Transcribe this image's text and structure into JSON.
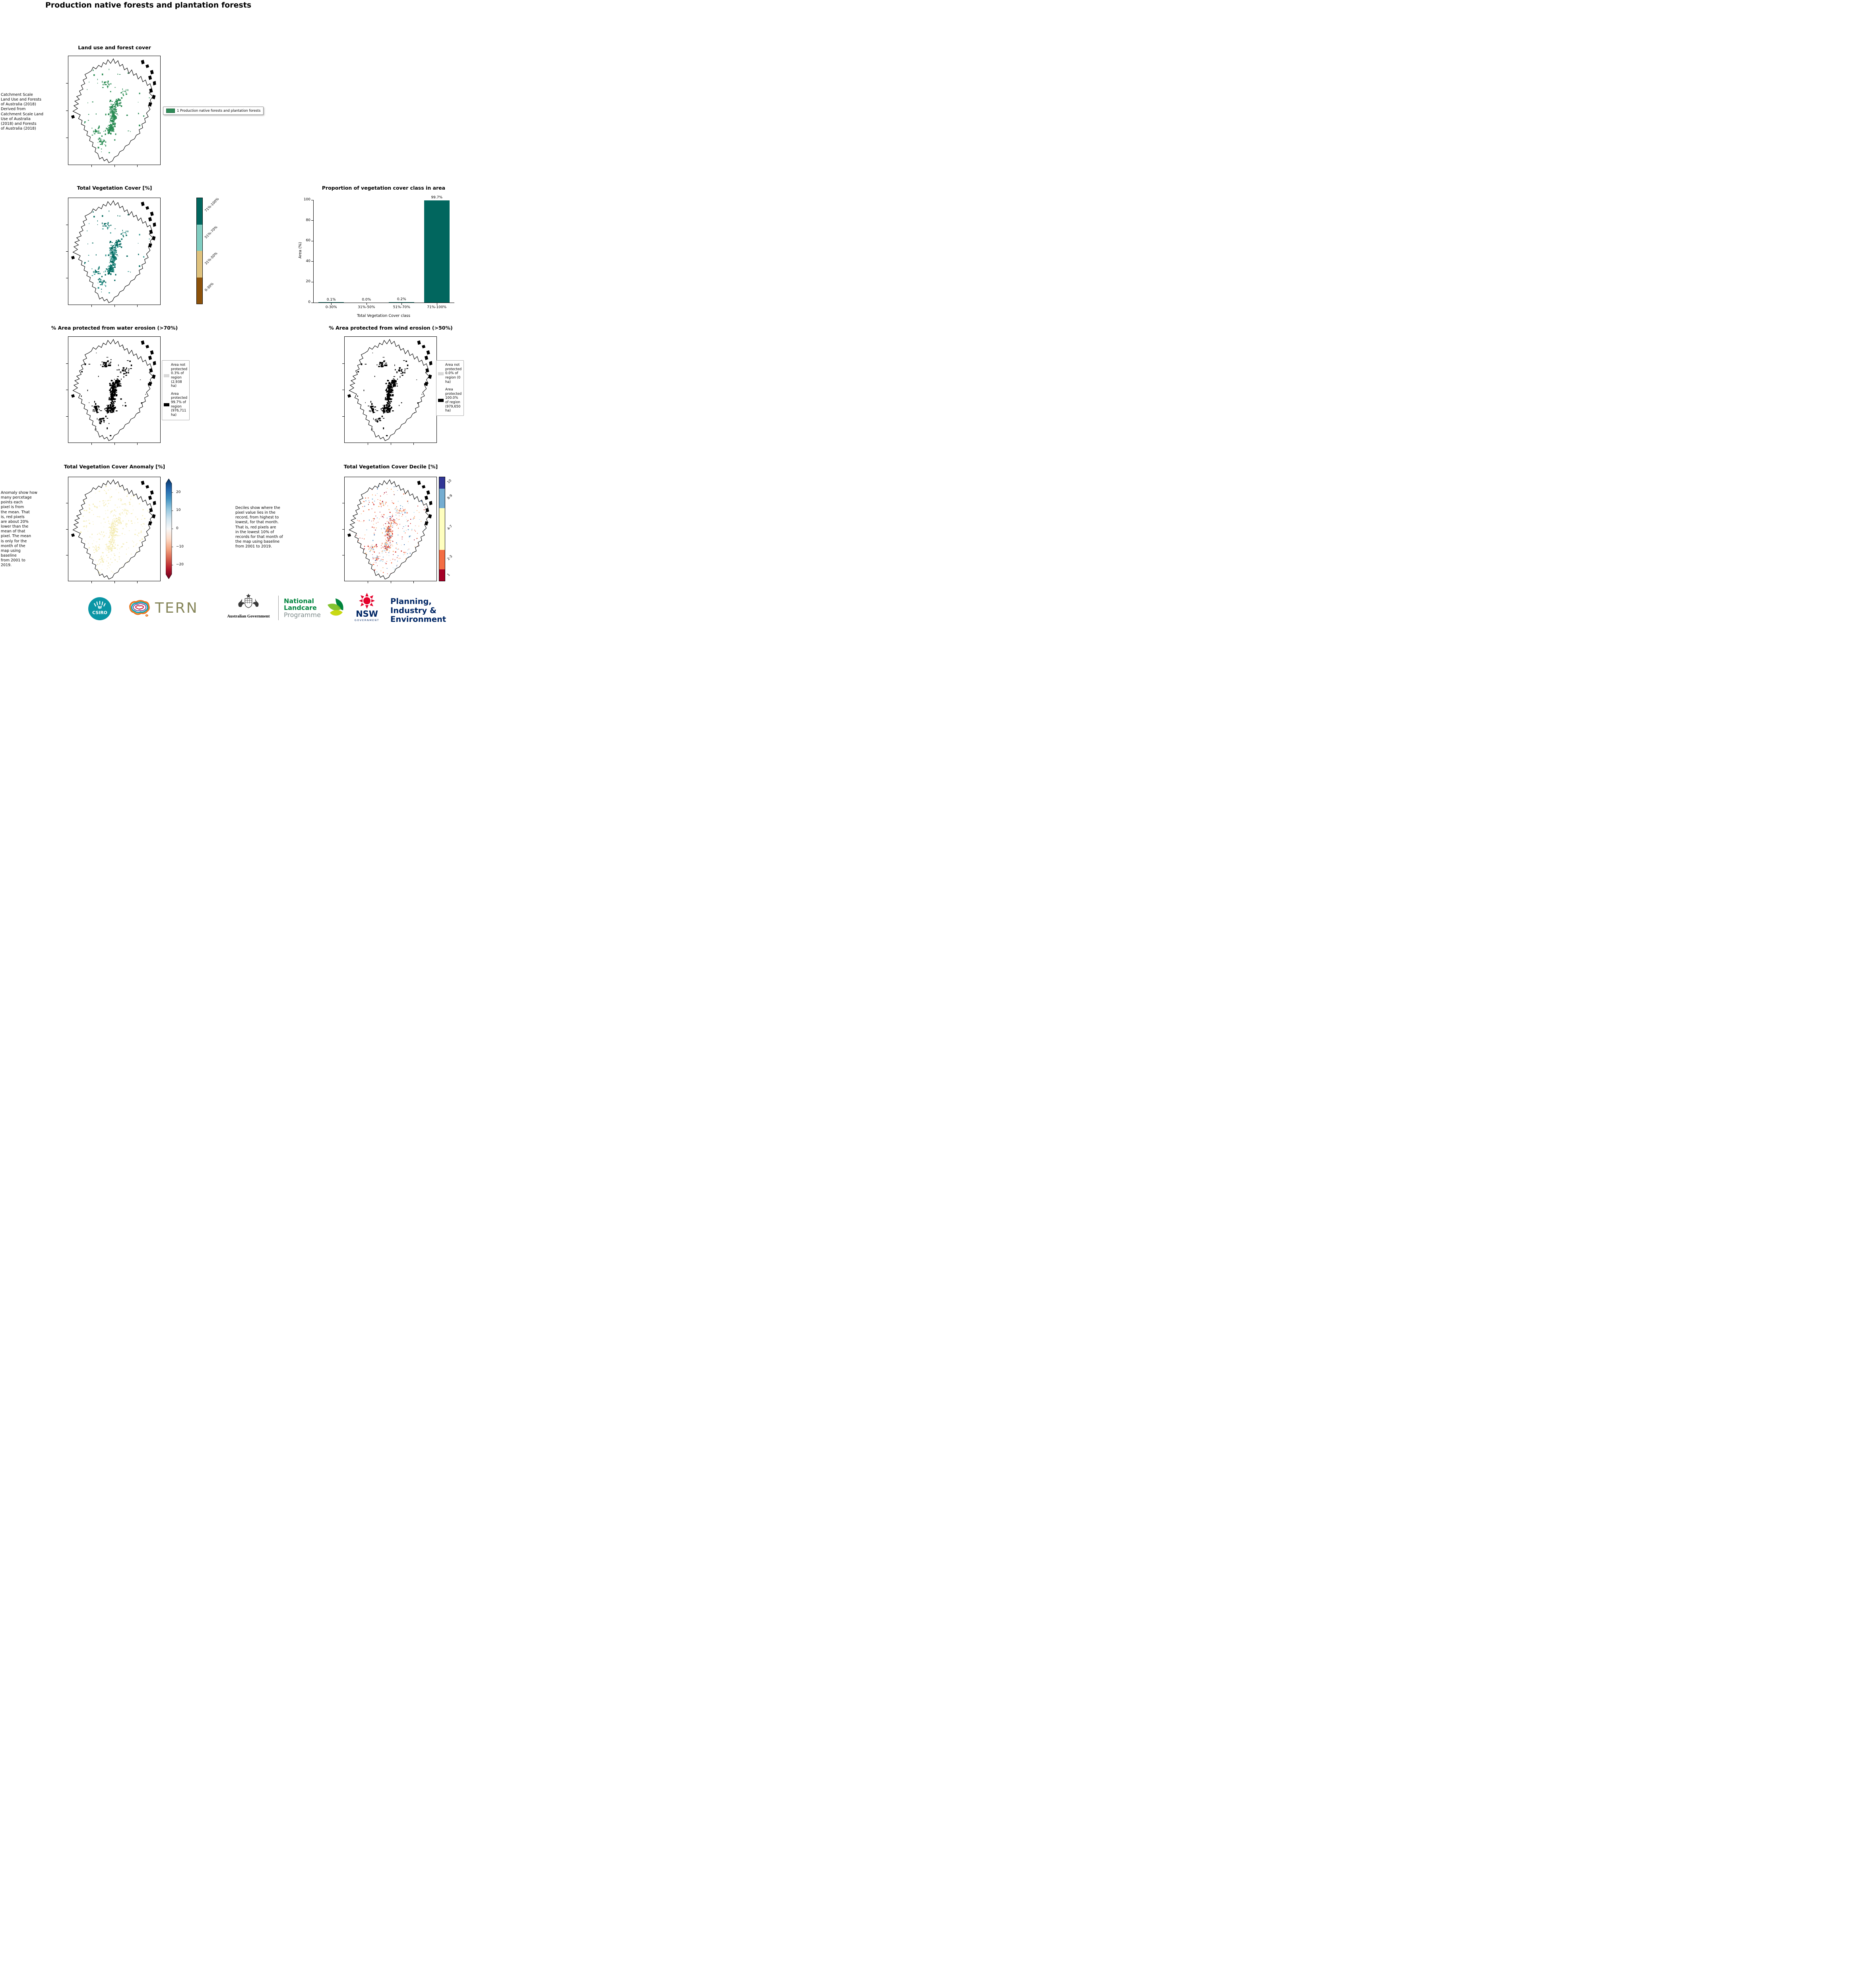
{
  "page": {
    "title": "Production native forests and plantation forests"
  },
  "land_use": {
    "title": "Land use and forest cover",
    "side_note": " Catchment Scale\nLand Use and Forests\nof Australia (2018)\nDerived from\nCatchment Scale Land\nUse of Australia\n(2018) and Forests\nof Australia (2018)",
    "legend_label": "1 Production native forests and plantation forests",
    "legend_color": "#2e8b57",
    "patch_colors": [
      "#2e8b57",
      "#278a4f",
      "#35935c"
    ]
  },
  "tvc": {
    "title": "Total Vegetation Cover [%]",
    "patch_colors": [
      "#01665e",
      "#0a6e63",
      "#35978f"
    ],
    "colorbar": {
      "classes": [
        {
          "label": "71%-100%",
          "color": "#01665e"
        },
        {
          "label": "51%-70%",
          "color": "#80cdc1"
        },
        {
          "label": "31%-50%",
          "color": "#dfc27d"
        },
        {
          "label": "0-30%",
          "color": "#8c510a"
        }
      ]
    }
  },
  "proportion": {
    "title": "Proportion of vegetation cover class in area",
    "chart_data": {
      "type": "bar",
      "categories": [
        "0-30%",
        "31%-50%",
        "51%-70%",
        "71%-100%"
      ],
      "values": [
        0.1,
        0.0,
        0.2,
        99.7
      ],
      "value_labels": [
        "0.1%",
        "0.0%",
        "0.2%",
        "99.7%"
      ],
      "xlabel": "Total Vegetation Cover class",
      "ylabel": "Area (%)",
      "ylim": [
        0,
        100
      ],
      "yticks": [
        0,
        20,
        40,
        60,
        80,
        100
      ],
      "bar_color": "#01665e",
      "grid": false
    }
  },
  "water": {
    "title": "% Area protected from water erosion (>70%)",
    "patch_colors": [
      "#000000"
    ],
    "legend": [
      {
        "label": "Area not protected 0.3% of region (2,938 ha)",
        "color": "#d9d9d9"
      },
      {
        "label": "Area protected 99.7% of region (976,711 ha)",
        "color": "#000000"
      }
    ]
  },
  "wind": {
    "title": "% Area protected from wind erosion (>50%)",
    "patch_colors": [
      "#000000"
    ],
    "legend": [
      {
        "label": "Area not protected 0.0% of region (0 ha)",
        "color": "#d9d9d9"
      },
      {
        "label": "Area protected 100.0% of region (979,650 ha)",
        "color": "#000000"
      }
    ]
  },
  "anomaly": {
    "title": "Total Vegetation Cover Anomaly [%]",
    "side_note": "Anomaly show how\nmany percetage\npoints each\npixel is from\nthe mean. That\nis, red pixels\nare about 20%\nlower than the\nmean of that\npixel. The mean\nis only for the\nmonth of the\nmap using\nbaseline\nfrom 2001 to\n2019.",
    "patch_colors": [
      "#f6efc0",
      "#f9f3cd",
      "#f2e9ae"
    ],
    "colorbar": {
      "ticks": [
        "20",
        "10",
        "0",
        "−10",
        "−20"
      ],
      "vmin": -25,
      "vmax": 25,
      "colors_top_to_bottom": [
        "#053061",
        "#2166ac",
        "#4393c3",
        "#92c5de",
        "#d1e5f0",
        "#f7f7f7",
        "#fddbc7",
        "#f4a582",
        "#d6604d",
        "#b2182b",
        "#67001f"
      ]
    }
  },
  "decile": {
    "title": "Total Vegetation Cover Decile [%]",
    "side_note": "Deciles show where the\npixel value lies in the\nrecord, from highest to\nlowest, for that month.\nThat is, red pixels are\nin the lowest 10% of\nrecords for that month of\nthe map using baseline\nfrom 2001 to 2019.",
    "patch_colors": [
      "#a50026",
      "#d73027",
      "#f46d43",
      "#fdae61",
      "#74add1",
      "#4575b4",
      "#f46d43",
      "#d73027",
      "#fdae61",
      "#abd9e9"
    ],
    "colorbar": {
      "classes": [
        {
          "label": "10",
          "color": "#313695",
          "span": 11
        },
        {
          "label": "8-9",
          "color": "#74add1",
          "span": 19
        },
        {
          "label": "4-7",
          "color": "#ffffbf",
          "span": 40
        },
        {
          "label": "2-3",
          "color": "#f46d43",
          "span": 19
        },
        {
          "label": "1",
          "color": "#a50026",
          "span": 11
        }
      ]
    }
  },
  "footer": {
    "csiro_label": "CSIRO",
    "tern_label": "TERN",
    "ausgov_label": "Australian Government",
    "landcare_line1": "National",
    "landcare_line2": "Landcare",
    "landcare_line3": "Programme",
    "nsw_label": "NSW",
    "nsw_sub": "GOVERNMENT",
    "dpie_line1": "Planning,",
    "dpie_line2": "Industry &",
    "dpie_line3": "Environment"
  }
}
